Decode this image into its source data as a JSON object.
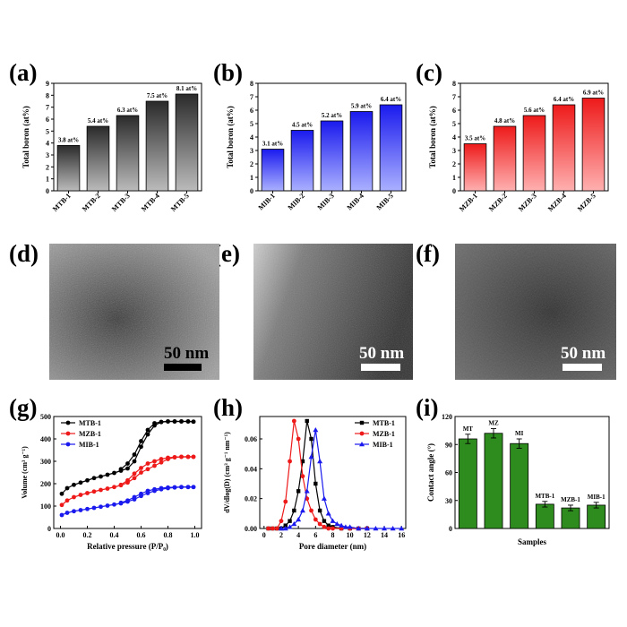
{
  "panels": {
    "a": "(a)",
    "b": "(b)",
    "c": "(c)",
    "d": "(d)",
    "e": "(e)",
    "f": "(f)",
    "g": "(g)",
    "h": "(h)",
    "i": "(i)"
  },
  "tem": [
    {
      "scale_label": "50 nm",
      "scale_color": "#000000",
      "bar_color": "#000000"
    },
    {
      "scale_label": "50 nm",
      "scale_color": "#ffffff",
      "bar_color": "#ffffff"
    },
    {
      "scale_label": "50 nm",
      "scale_color": "#ffffff",
      "bar_color": "#ffffff"
    }
  ],
  "chart_data": [
    {
      "type": "bar",
      "categories": [
        "MTB-1",
        "MTB-2",
        "MTB-3",
        "MTB-4",
        "MTB-5"
      ],
      "values": [
        3.8,
        5.4,
        6.3,
        7.5,
        8.1
      ],
      "data_labels": [
        "3.8 at%",
        "5.4 at%",
        "6.3 at%",
        "7.5 at%",
        "8.1 at%"
      ],
      "ylabel": "Total boron (at%)",
      "ylim": [
        0,
        9
      ],
      "yticks": [
        "0",
        "1",
        "2",
        "3",
        "4",
        "5",
        "6",
        "7",
        "8",
        "9"
      ],
      "color": "#2a2a2a"
    },
    {
      "type": "bar",
      "categories": [
        "MIB-1",
        "MIB-2",
        "MIB-3",
        "MIB-4",
        "MIB-5"
      ],
      "values": [
        3.1,
        4.5,
        5.2,
        5.9,
        6.4
      ],
      "data_labels": [
        "3.1 at%",
        "4.5 at%",
        "5.2 at%",
        "5.9 at%",
        "6.4 at%"
      ],
      "ylabel": "Total boron (at%)",
      "ylim": [
        0,
        8
      ],
      "yticks": [
        "0",
        "1",
        "2",
        "3",
        "4",
        "5",
        "6",
        "7",
        "8"
      ],
      "color": "#1a1aee"
    },
    {
      "type": "bar",
      "categories": [
        "MZB-1",
        "MZB-2",
        "MZB-3",
        "MZB-4",
        "MZB-5"
      ],
      "values": [
        3.5,
        4.8,
        5.6,
        6.4,
        6.9
      ],
      "data_labels": [
        "3.5 at%",
        "4.8 at%",
        "5.6 at%",
        "6.4 at%",
        "6.9 at%"
      ],
      "ylabel": "Total boron (at%)",
      "ylim": [
        0,
        8
      ],
      "yticks": [
        "0",
        "1",
        "2",
        "3",
        "4",
        "5",
        "6",
        "7",
        "8"
      ],
      "color": "#ee1a1a"
    },
    {
      "type": "line",
      "xlabel": "Relative pressure (P/P₀)",
      "ylabel": "Volume (cm³ g⁻¹)",
      "xlim": [
        -0.05,
        1.05
      ],
      "ylim": [
        0,
        500
      ],
      "xticks": [
        "0.0",
        "0.2",
        "0.4",
        "0.6",
        "0.8",
        "1.0"
      ],
      "yticks": [
        "0",
        "100",
        "200",
        "300",
        "400",
        "500"
      ],
      "legend_position": "top-left",
      "series": [
        {
          "name": "MTB-1",
          "color": "#000000",
          "marker": "circle",
          "x": [
            0.01,
            0.05,
            0.1,
            0.15,
            0.2,
            0.25,
            0.3,
            0.35,
            0.4,
            0.45,
            0.5,
            0.55,
            0.6,
            0.65,
            0.7,
            0.75,
            0.8,
            0.85,
            0.9,
            0.95,
            0.99
          ],
          "y": [
            155,
            180,
            195,
            205,
            215,
            225,
            232,
            240,
            248,
            258,
            268,
            300,
            365,
            420,
            460,
            475,
            478,
            478,
            478,
            478,
            477
          ],
          "x2": [
            0.99,
            0.95,
            0.9,
            0.85,
            0.8,
            0.75,
            0.7,
            0.65,
            0.6,
            0.55,
            0.5,
            0.45
          ],
          "y2": [
            477,
            478,
            478,
            478,
            478,
            476,
            470,
            440,
            390,
            330,
            290,
            265
          ]
        },
        {
          "name": "MZB-1",
          "color": "#ee1a1a",
          "marker": "circle",
          "x": [
            0.01,
            0.05,
            0.1,
            0.15,
            0.2,
            0.25,
            0.3,
            0.35,
            0.4,
            0.45,
            0.5,
            0.55,
            0.6,
            0.65,
            0.7,
            0.75,
            0.8,
            0.85,
            0.9,
            0.95,
            0.99
          ],
          "y": [
            105,
            125,
            140,
            150,
            158,
            165,
            172,
            178,
            185,
            193,
            205,
            225,
            250,
            265,
            280,
            295,
            310,
            318,
            320,
            320,
            320
          ],
          "x2": [
            0.99,
            0.95,
            0.9,
            0.85,
            0.8,
            0.75,
            0.7,
            0.65,
            0.6,
            0.55,
            0.5,
            0.45
          ],
          "y2": [
            320,
            320,
            320,
            318,
            316,
            310,
            300,
            290,
            270,
            245,
            215,
            195
          ]
        },
        {
          "name": "MIB-1",
          "color": "#1a1aee",
          "marker": "circle",
          "x": [
            0.01,
            0.05,
            0.1,
            0.15,
            0.2,
            0.25,
            0.3,
            0.35,
            0.4,
            0.45,
            0.5,
            0.55,
            0.6,
            0.65,
            0.7,
            0.75,
            0.8,
            0.85,
            0.9,
            0.95,
            0.99
          ],
          "y": [
            60,
            70,
            77,
            82,
            87,
            92,
            97,
            102,
            107,
            112,
            120,
            130,
            145,
            158,
            168,
            175,
            180,
            183,
            185,
            185,
            185
          ],
          "x2": [
            0.99,
            0.95,
            0.9,
            0.85,
            0.8,
            0.75,
            0.7,
            0.65,
            0.6,
            0.55,
            0.5,
            0.45
          ],
          "y2": [
            185,
            185,
            185,
            184,
            183,
            180,
            175,
            168,
            155,
            140,
            125,
            115
          ]
        }
      ]
    },
    {
      "type": "line",
      "xlabel": "Pore diameter (nm)",
      "ylabel": "dV/dlog(D) (cm³ g⁻¹ nm⁻¹)",
      "xlim": [
        -0.5,
        16.5
      ],
      "ylim": [
        0,
        0.075
      ],
      "xticks": [
        "0",
        "2",
        "4",
        "6",
        "8",
        "10",
        "12",
        "14",
        "16"
      ],
      "yticks": [
        "0.00",
        "0.02",
        "0.04",
        "0.06"
      ],
      "legend_position": "top-right",
      "series": [
        {
          "name": "MTB-1",
          "color": "#000000",
          "marker": "square",
          "x": [
            0.5,
            1,
            1.5,
            2,
            2.5,
            3,
            3.5,
            4,
            4.5,
            5,
            5.5,
            6,
            6.5,
            7,
            7.5,
            8,
            9,
            10,
            11,
            12
          ],
          "y": [
            0,
            0,
            0,
            0,
            0.002,
            0.005,
            0.012,
            0.025,
            0.045,
            0.072,
            0.06,
            0.03,
            0.012,
            0.005,
            0.002,
            0.001,
            0,
            0,
            0,
            0
          ]
        },
        {
          "name": "MZB-1",
          "color": "#ee1a1a",
          "marker": "circle",
          "x": [
            0.5,
            1,
            1.5,
            2,
            2.5,
            3,
            3.5,
            4,
            4.5,
            5,
            5.5,
            6,
            6.5,
            7,
            7.5,
            8,
            9,
            10,
            11,
            12
          ],
          "y": [
            0,
            0,
            0,
            0.005,
            0.018,
            0.045,
            0.072,
            0.06,
            0.035,
            0.02,
            0.012,
            0.006,
            0.003,
            0.001,
            0,
            0,
            0,
            0,
            0,
            0
          ]
        },
        {
          "name": "MIB-1",
          "color": "#1a1aee",
          "marker": "triangle",
          "x": [
            2,
            2.5,
            3,
            3.5,
            4,
            4.5,
            5,
            5.5,
            6,
            6.5,
            7,
            7.5,
            8,
            8.5,
            9,
            9.5,
            10,
            11,
            12,
            13,
            14,
            15,
            16
          ],
          "y": [
            0,
            0,
            0.001,
            0.003,
            0.006,
            0.012,
            0.025,
            0.048,
            0.066,
            0.045,
            0.02,
            0.01,
            0.005,
            0.003,
            0.002,
            0.001,
            0.001,
            0,
            0,
            0,
            0,
            0,
            0
          ]
        }
      ]
    },
    {
      "type": "bar",
      "xlabel": "Samples",
      "ylabel": "Contact angle (°)",
      "ylim": [
        0,
        120
      ],
      "yticks": [
        "0",
        "30",
        "60",
        "90",
        "120"
      ],
      "categories": [
        "MT",
        "MZ",
        "MI",
        "MTB-1",
        "MZB-1",
        "MIB-1"
      ],
      "values": [
        96,
        102,
        91,
        26,
        22,
        25
      ],
      "errors": [
        5,
        5,
        5,
        3,
        3,
        3
      ],
      "color": "#2e8b1e"
    }
  ]
}
